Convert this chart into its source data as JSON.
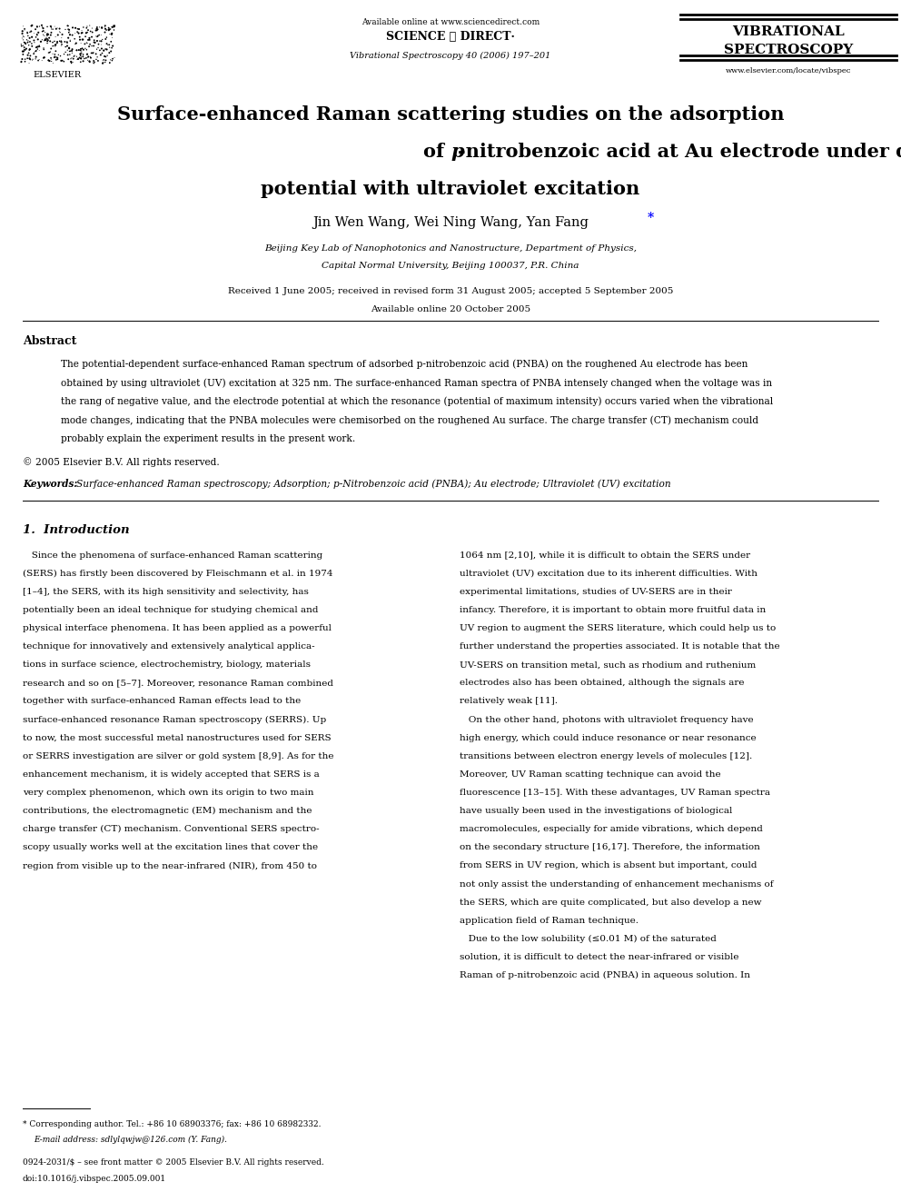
{
  "page_width": 9.92,
  "page_height": 13.23,
  "background_color": "#ffffff",
  "header": {
    "available_online_text": "Available online at www.sciencedirect.com",
    "sciencedirect": "SCIENCE ⓐ DIRECT·",
    "journal_ref": "Vibrational Spectroscopy 40 (2006) 197–201",
    "journal_name_line1": "VIBRATIONAL",
    "journal_name_line2": "SPECTROSCOPY",
    "journal_url": "www.elsevier.com/locate/vibspec",
    "elsevier_text": "ELSEVIER"
  },
  "title_line1": "Surface-enhanced Raman scattering studies on the adsorption",
  "title_line2_pre": "of ",
  "title_line2_italic": "p",
  "title_line2_post": "-nitrobenzoic acid at Au electrode under different",
  "title_line3": "potential with ultraviolet excitation",
  "authors_pre": "Jin Wen Wang, Wei Ning Wang, Yan Fang",
  "authors_star": "*",
  "affiliation_line1": "Beijing Key Lab of Nanophotonics and Nanostructure, Department of Physics,",
  "affiliation_line2": "Capital Normal University, Beijing 100037, P.R. China",
  "received_line1": "Received 1 June 2005; received in revised form 31 August 2005; accepted 5 September 2005",
  "received_line2": "Available online 20 October 2005",
  "abstract_title": "Abstract",
  "abstract_lines": [
    "The potential-dependent surface-enhanced Raman spectrum of adsorbed p-nitrobenzoic acid (PNBA) on the roughened Au electrode has been",
    "obtained by using ultraviolet (UV) excitation at 325 nm. The surface-enhanced Raman spectra of PNBA intensely changed when the voltage was in",
    "the rang of negative value, and the electrode potential at which the resonance (potential of maximum intensity) occurs varied when the vibrational",
    "mode changes, indicating that the PNBA molecules were chemisorbed on the roughened Au surface. The charge transfer (CT) mechanism could",
    "probably explain the experiment results in the present work."
  ],
  "copyright_text": "© 2005 Elsevier B.V. All rights reserved.",
  "keywords_label": "Keywords:",
  "keywords_text": "Surface-enhanced Raman spectroscopy; Adsorption; p-Nitrobenzoic acid (PNBA); Au electrode; Ultraviolet (UV) excitation",
  "section1_title": "1.  Introduction",
  "col1_lines": [
    "   Since the phenomena of surface-enhanced Raman scattering",
    "(SERS) has firstly been discovered by Fleischmann et al. in 1974",
    "[1–4], the SERS, with its high sensitivity and selectivity, has",
    "potentially been an ideal technique for studying chemical and",
    "physical interface phenomena. It has been applied as a powerful",
    "technique for innovatively and extensively analytical applica-",
    "tions in surface science, electrochemistry, biology, materials",
    "research and so on [5–7]. Moreover, resonance Raman combined",
    "together with surface-enhanced Raman effects lead to the",
    "surface-enhanced resonance Raman spectroscopy (SERRS). Up",
    "to now, the most successful metal nanostructures used for SERS",
    "or SERRS investigation are silver or gold system [8,9]. As for the",
    "enhancement mechanism, it is widely accepted that SERS is a",
    "very complex phenomenon, which own its origin to two main",
    "contributions, the electromagnetic (EM) mechanism and the",
    "charge transfer (CT) mechanism. Conventional SERS spectro-",
    "scopy usually works well at the excitation lines that cover the",
    "region from visible up to the near-infrared (NIR), from 450 to"
  ],
  "col2_lines": [
    "1064 nm [2,10], while it is difficult to obtain the SERS under",
    "ultraviolet (UV) excitation due to its inherent difficulties. With",
    "experimental limitations, studies of UV-SERS are in their",
    "infancy. Therefore, it is important to obtain more fruitful data in",
    "UV region to augment the SERS literature, which could help us to",
    "further understand the properties associated. It is notable that the",
    "UV-SERS on transition metal, such as rhodium and ruthenium",
    "electrodes also has been obtained, although the signals are",
    "relatively weak [11].",
    "   On the other hand, photons with ultraviolet frequency have",
    "high energy, which could induce resonance or near resonance",
    "transitions between electron energy levels of molecules [12].",
    "Moreover, UV Raman scatting technique can avoid the",
    "fluorescence [13–15]. With these advantages, UV Raman spectra",
    "have usually been used in the investigations of biological",
    "macromolecules, especially for amide vibrations, which depend",
    "on the secondary structure [16,17]. Therefore, the information",
    "from SERS in UV region, which is absent but important, could",
    "not only assist the understanding of enhancement mechanisms of",
    "the SERS, which are quite complicated, but also develop a new",
    "application field of Raman technique.",
    "   Due to the low solubility (≤0.01 M) of the saturated",
    "solution, it is difficult to detect the near-infrared or visible",
    "Raman of p-nitrobenzoic acid (PNBA) in aqueous solution. In"
  ],
  "footnote_line": "* Corresponding author. Tel.: +86 10 68903376; fax: +86 10 68982332.",
  "footnote_email": "E-mail address: sdlylqwjw@126.com (Y. Fang).",
  "bottom_issn": "0924-2031/$ – see front matter © 2005 Elsevier B.V. All rights reserved.",
  "bottom_doi": "doi:10.1016/j.vibspec.2005.09.001"
}
